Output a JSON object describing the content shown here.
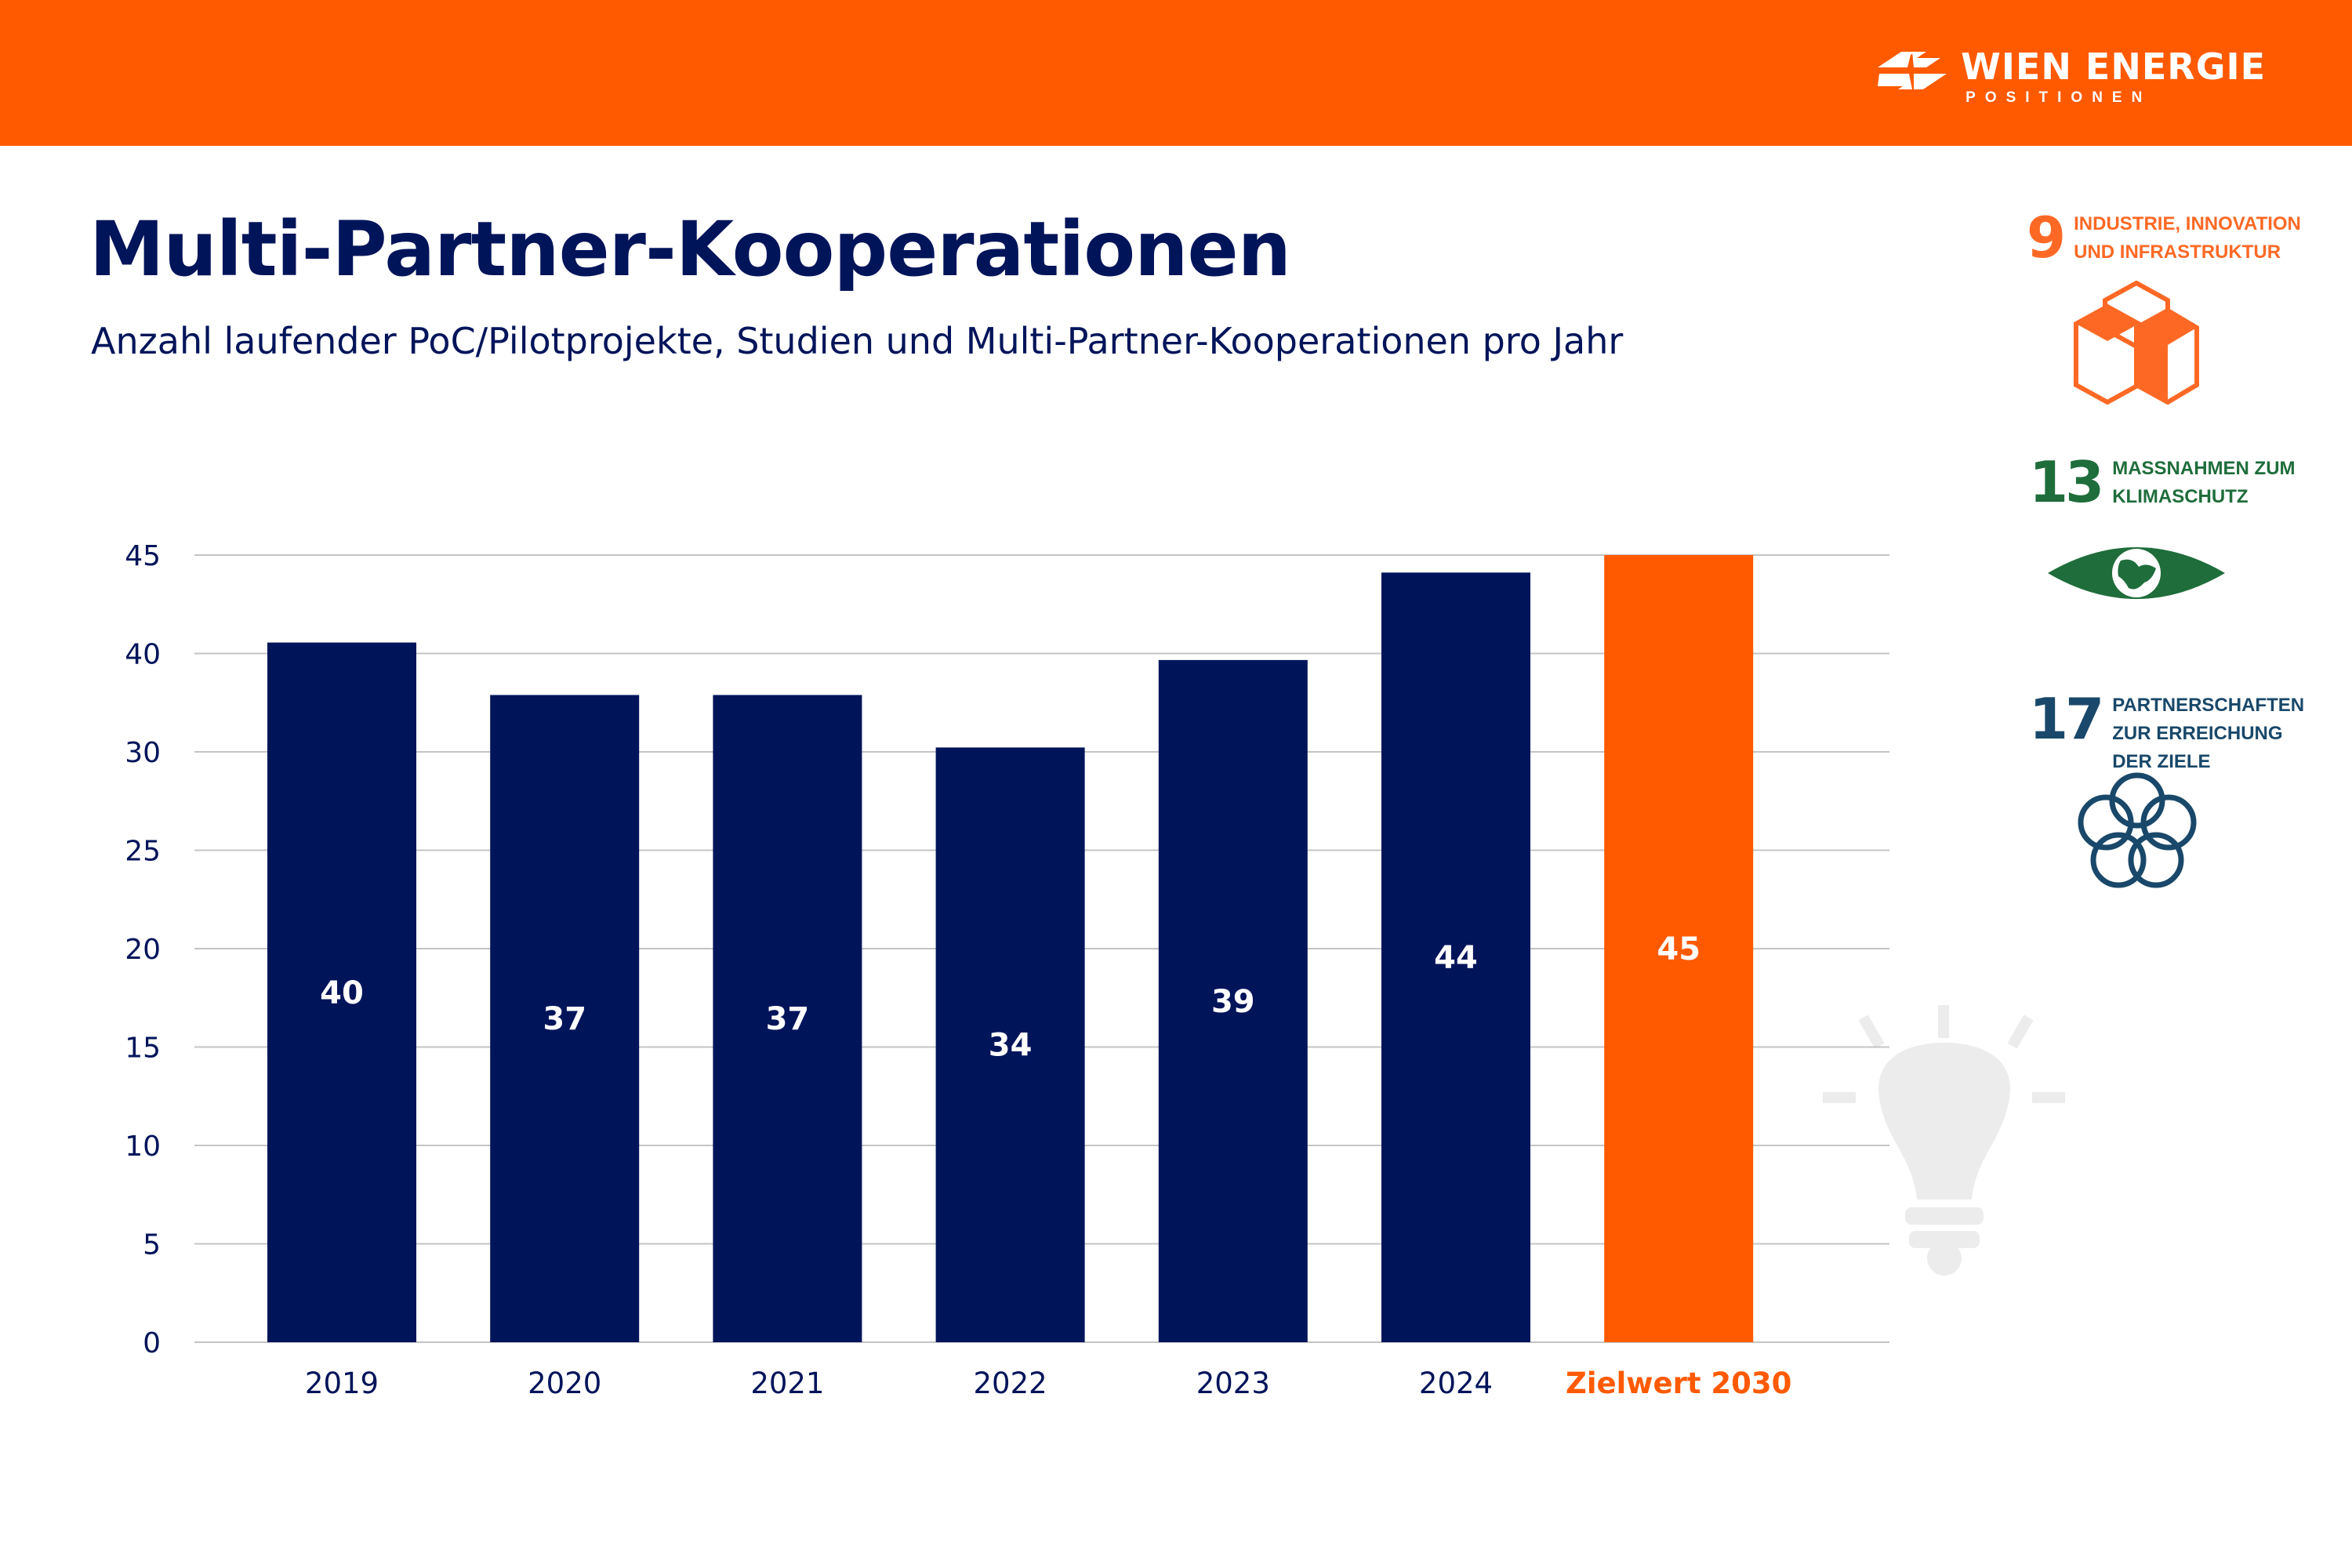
{
  "header": {
    "logo_name": "WIEN ENERGIE",
    "logo_sub": "POSITIONEN",
    "color": "#ff5a00"
  },
  "title": "Multi-Partner-Kooperationen",
  "subtitle": "Anzahl laufender PoC/Pilotprojekte, Studien und Multi-Partner-Kooperationen pro Jahr",
  "sdgs": [
    {
      "number": "9",
      "label_line1": "Industrie, Innovation",
      "label_line2": "und Infrastruktur",
      "label_line3": "",
      "color": "#fd6925",
      "icon": "cubes-icon"
    },
    {
      "number": "13",
      "label_line1": "Massnahmen zum",
      "label_line2": "Klimaschutz",
      "label_line3": "",
      "color": "#1f6d3b",
      "icon": "eye-globe-icon"
    },
    {
      "number": "17",
      "label_line1": "Partnerschaften",
      "label_line2": "zur Erreichung",
      "label_line3": "der Ziele",
      "color": "#19486a",
      "icon": "rings-icon"
    }
  ],
  "chart_data": {
    "type": "bar",
    "title": "",
    "xlabel": "",
    "ylabel": "",
    "categories": [
      "2019",
      "2020",
      "2021",
      "2022",
      "2023",
      "2024",
      "Zielwert 2030"
    ],
    "values": [
      40,
      37,
      37,
      34,
      39,
      44,
      45
    ],
    "data_labels": [
      "40",
      "37",
      "37",
      "34",
      "39",
      "44",
      "45"
    ],
    "y_tick_labels": [
      "0",
      "5",
      "10",
      "15",
      "20",
      "25",
      "30",
      "40",
      "45"
    ],
    "ylim": [
      0,
      45
    ],
    "grid": true,
    "legend": "none",
    "bar_colors": [
      "#00145a",
      "#00145a",
      "#00145a",
      "#00145a",
      "#00145a",
      "#00145a",
      "#ff5a00"
    ],
    "highlight_category_color": "#ff5a00"
  }
}
